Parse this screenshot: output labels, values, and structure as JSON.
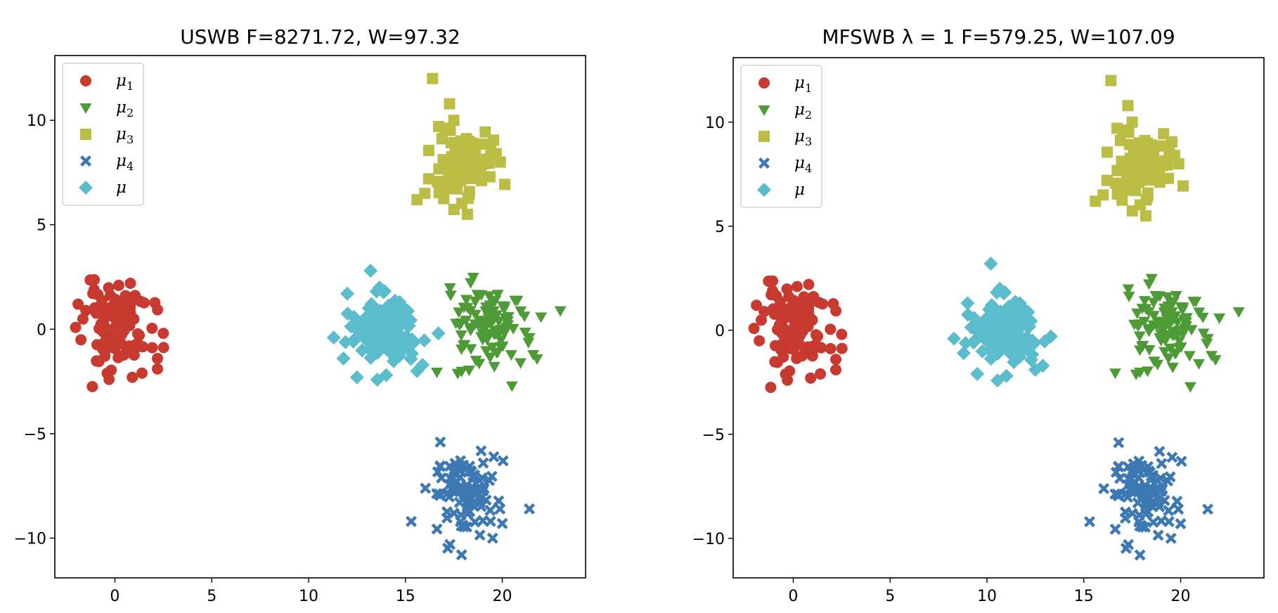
{
  "chart_data": [
    {
      "type": "scatter",
      "title": "USWB F=8271.72, W=97.32",
      "xlabel": "",
      "ylabel": "",
      "xlim": [
        -3.1,
        24.3
      ],
      "ylim": [
        -11.9,
        13.1
      ],
      "xticks": [
        0,
        5,
        10,
        15,
        20
      ],
      "yticks": [
        -10,
        -5,
        0,
        5,
        10
      ],
      "xtick_labels": [
        "0",
        "5",
        "10",
        "15",
        "20"
      ],
      "ytick_labels": [
        "−10",
        "−5",
        "0",
        "5",
        "10"
      ],
      "grid": false,
      "legend_position": "top-left",
      "series": [
        {
          "name": "μ1",
          "marker": "circle",
          "color": "#c8392f",
          "center": [
            0.1,
            0.1
          ],
          "spread": [
            0.9,
            1.0
          ],
          "count": 90,
          "seed": 11,
          "extra_points": [
            [
              0.8,
              2.2
            ],
            [
              0.2,
              2.1
            ],
            [
              -1.9,
              1.2
            ],
            [
              2.5,
              -0.2
            ],
            [
              2.2,
              -1.4
            ],
            [
              2.2,
              -1.9
            ],
            [
              1.4,
              -2.1
            ],
            [
              0.9,
              -2.3
            ],
            [
              -0.3,
              -2.4
            ],
            [
              -1.5,
              0.9
            ]
          ]
        },
        {
          "name": "μ2",
          "marker": "triangle-down",
          "color": "#4e9a36",
          "center": [
            19.2,
            0.2
          ],
          "spread": [
            1.0,
            1.0
          ],
          "count": 90,
          "seed": 23,
          "extra_points": [
            [
              23.0,
              0.9
            ],
            [
              17.3,
              2.0
            ],
            [
              17.9,
              -2.0
            ],
            [
              20.5,
              -2.7
            ],
            [
              18.5,
              2.5
            ],
            [
              17.7,
              -2.1
            ],
            [
              21.8,
              -1.4
            ],
            [
              21.6,
              -1.2
            ],
            [
              22.0,
              0.6
            ]
          ]
        },
        {
          "name": "μ3",
          "marker": "square",
          "color": "#bcbd44",
          "center": [
            18.1,
            8.0
          ],
          "spread": [
            0.7,
            0.9
          ],
          "count": 90,
          "seed": 37,
          "extra_points": [
            [
              16.4,
              12.0
            ],
            [
              15.6,
              6.2
            ],
            [
              16.0,
              6.5
            ],
            [
              18.2,
              5.5
            ],
            [
              16.2,
              7.2
            ],
            [
              19.9,
              8.0
            ],
            [
              17.5,
              10.0
            ]
          ]
        },
        {
          "name": "μ4",
          "marker": "x",
          "color": "#3c78b2",
          "center": [
            18.0,
            -7.9
          ],
          "spread": [
            0.9,
            0.9
          ],
          "count": 90,
          "seed": 53,
          "extra_points": [
            [
              21.4,
              -8.6
            ],
            [
              16.8,
              -5.4
            ],
            [
              15.3,
              -9.2
            ],
            [
              17.9,
              -10.8
            ],
            [
              17.3,
              -10.3
            ],
            [
              19.5,
              -10.0
            ],
            [
              20.0,
              -9.3
            ]
          ]
        },
        {
          "name": "μ",
          "marker": "diamond",
          "color": "#5bbccc",
          "center": [
            13.9,
            0.0
          ],
          "spread": [
            0.9,
            0.8
          ],
          "count": 130,
          "seed": 71,
          "extra_points": [
            [
              13.2,
              2.8
            ],
            [
              11.3,
              -0.4
            ],
            [
              12.5,
              -2.3
            ],
            [
              16.7,
              -0.2
            ],
            [
              15.6,
              -2.0
            ],
            [
              11.8,
              -1.4
            ],
            [
              12.0,
              1.7
            ]
          ]
        }
      ]
    },
    {
      "type": "scatter",
      "title": "MFSWB λ = 1 F=579.25, W=107.09",
      "xlabel": "",
      "ylabel": "",
      "xlim": [
        -3.1,
        24.3
      ],
      "ylim": [
        -11.9,
        13.1
      ],
      "xticks": [
        0,
        5,
        10,
        15,
        20
      ],
      "yticks": [
        -10,
        -5,
        0,
        5,
        10
      ],
      "xtick_labels": [
        "0",
        "5",
        "10",
        "15",
        "20"
      ],
      "ytick_labels": [
        "−10",
        "−5",
        "0",
        "5",
        "10"
      ],
      "grid": false,
      "legend_position": "top-left",
      "series": [
        {
          "name": "μ1",
          "marker": "circle",
          "color": "#c8392f",
          "center": [
            0.1,
            0.1
          ],
          "spread": [
            0.9,
            1.0
          ],
          "count": 90,
          "seed": 11,
          "extra_points": [
            [
              0.8,
              2.2
            ],
            [
              0.2,
              2.1
            ],
            [
              -1.9,
              1.2
            ],
            [
              2.5,
              -0.2
            ],
            [
              2.2,
              -1.4
            ],
            [
              2.2,
              -1.9
            ],
            [
              1.4,
              -2.1
            ],
            [
              0.9,
              -2.3
            ],
            [
              -0.3,
              -2.4
            ],
            [
              -1.5,
              0.9
            ]
          ]
        },
        {
          "name": "μ2",
          "marker": "triangle-down",
          "color": "#4e9a36",
          "center": [
            19.2,
            0.2
          ],
          "spread": [
            1.0,
            1.0
          ],
          "count": 90,
          "seed": 23,
          "extra_points": [
            [
              23.0,
              0.9
            ],
            [
              17.3,
              2.0
            ],
            [
              17.9,
              -2.0
            ],
            [
              20.5,
              -2.7
            ],
            [
              18.5,
              2.5
            ],
            [
              17.7,
              -2.1
            ],
            [
              21.8,
              -1.4
            ],
            [
              21.6,
              -1.2
            ],
            [
              22.0,
              0.6
            ]
          ]
        },
        {
          "name": "μ3",
          "marker": "square",
          "color": "#bcbd44",
          "center": [
            18.1,
            8.0
          ],
          "spread": [
            0.7,
            0.9
          ],
          "count": 90,
          "seed": 37,
          "extra_points": [
            [
              16.4,
              12.0
            ],
            [
              15.6,
              6.2
            ],
            [
              16.0,
              6.5
            ],
            [
              18.2,
              5.5
            ],
            [
              16.2,
              7.2
            ],
            [
              19.9,
              8.0
            ],
            [
              17.5,
              10.0
            ]
          ]
        },
        {
          "name": "μ4",
          "marker": "x",
          "color": "#3c78b2",
          "center": [
            18.0,
            -7.9
          ],
          "spread": [
            0.9,
            0.9
          ],
          "count": 90,
          "seed": 53,
          "extra_points": [
            [
              21.4,
              -8.6
            ],
            [
              16.8,
              -5.4
            ],
            [
              15.3,
              -9.2
            ],
            [
              17.9,
              -10.8
            ],
            [
              17.3,
              -10.3
            ],
            [
              19.5,
              -10.0
            ],
            [
              20.0,
              -9.3
            ]
          ]
        },
        {
          "name": "μ",
          "marker": "diamond",
          "color": "#5bbccc",
          "center": [
            10.9,
            0.0
          ],
          "spread": [
            0.9,
            0.8
          ],
          "count": 130,
          "seed": 71,
          "extra_points": [
            [
              10.2,
              3.2
            ],
            [
              8.3,
              -0.4
            ],
            [
              9.5,
              -2.1
            ],
            [
              13.3,
              -0.3
            ],
            [
              12.5,
              -1.9
            ],
            [
              8.8,
              -1.1
            ],
            [
              9.0,
              1.3
            ]
          ]
        }
      ]
    }
  ]
}
